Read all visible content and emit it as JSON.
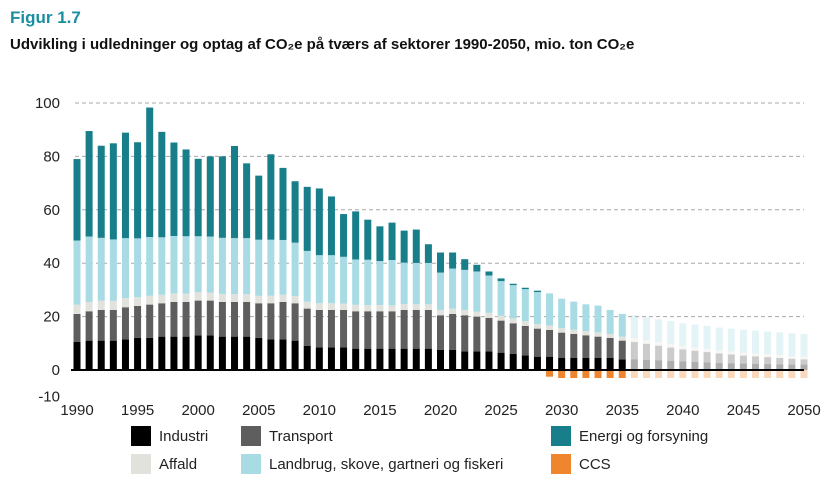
{
  "figure_label": "Figur 1.7",
  "title": "Udvikling i udledninger og optag af CO₂e på tværs af sektorer 1990-2050, mio. ton CO₂e",
  "chart_data": {
    "type": "bar",
    "stacked": true,
    "title": "Udvikling i udledninger og optag af CO₂e på tværs af sektorer 1990-2050, mio. ton CO₂e",
    "xlabel": "",
    "ylabel": "",
    "ylim": [
      -10,
      100
    ],
    "yticks": [
      -10,
      0,
      20,
      40,
      60,
      80,
      100
    ],
    "xticks": [
      1990,
      1995,
      2000,
      2005,
      2010,
      2015,
      2020,
      2025,
      2030,
      2035,
      2040,
      2045,
      2050
    ],
    "grid": "horizontal dashed",
    "legend_position": "bottom",
    "projection_starts": 2036,
    "categories": [
      1990,
      1991,
      1992,
      1993,
      1994,
      1995,
      1996,
      1997,
      1998,
      1999,
      2000,
      2001,
      2002,
      2003,
      2004,
      2005,
      2006,
      2007,
      2008,
      2009,
      2010,
      2011,
      2012,
      2013,
      2014,
      2015,
      2016,
      2017,
      2018,
      2019,
      2020,
      2021,
      2022,
      2023,
      2024,
      2025,
      2026,
      2027,
      2028,
      2029,
      2030,
      2031,
      2032,
      2033,
      2034,
      2035,
      2036,
      2037,
      2038,
      2039,
      2040,
      2041,
      2042,
      2043,
      2044,
      2045,
      2046,
      2047,
      2048,
      2049,
      2050
    ],
    "series": [
      {
        "name": "Industri",
        "color": "#000000",
        "values": [
          10.5,
          11,
          11,
          11,
          11.5,
          12,
          12,
          12.5,
          12.5,
          12.5,
          13,
          13,
          12.5,
          12.5,
          12.5,
          12,
          11.5,
          11.5,
          11,
          9,
          8.5,
          8.5,
          8.5,
          8,
          8,
          8,
          8,
          8,
          8,
          8,
          7.5,
          7.5,
          7,
          7,
          7,
          6.5,
          6,
          5.5,
          5,
          5,
          4.5,
          4.5,
          4.5,
          4.5,
          4.5,
          4,
          4,
          3.8,
          3.6,
          3.4,
          3.2,
          3,
          2.8,
          2.6,
          2.5,
          2.4,
          2.3,
          2.2,
          2.1,
          2,
          2
        ]
      },
      {
        "name": "Transport",
        "color": "#5e5e5e",
        "values": [
          10.5,
          11,
          11.5,
          11.5,
          12,
          12,
          12.5,
          12.5,
          13,
          13,
          13,
          13,
          13,
          13,
          13,
          13,
          13.5,
          14,
          14,
          14,
          14,
          14,
          14,
          14,
          14,
          14,
          14,
          14.5,
          14.5,
          14.5,
          13,
          13.5,
          13.5,
          13,
          12.5,
          12,
          11.5,
          11,
          10.5,
          10,
          9.5,
          9,
          8.5,
          8,
          7.5,
          7,
          6.5,
          6,
          5.5,
          5,
          4.5,
          4.2,
          3.9,
          3.6,
          3.3,
          3,
          2.8,
          2.6,
          2.4,
          2.2,
          2
        ]
      },
      {
        "name": "Affald",
        "color": "#e2e2dc",
        "values": [
          3.5,
          3.5,
          3.5,
          3.4,
          3.4,
          3.3,
          3.3,
          3.2,
          3.2,
          3.1,
          3.1,
          3,
          3,
          2.9,
          2.9,
          2.8,
          2.8,
          2.7,
          2.7,
          2.6,
          2.5,
          2.5,
          2.4,
          2.4,
          2.3,
          2.3,
          2.2,
          2.2,
          2.1,
          2.1,
          2,
          2,
          2,
          1.9,
          1.9,
          1.8,
          1.8,
          1.8,
          1.7,
          1.7,
          1.7,
          1.6,
          1.6,
          1.6,
          1.5,
          1.5,
          1.5,
          1.4,
          1.4,
          1.4,
          1.3,
          1.3,
          1.3,
          1.2,
          1.2,
          1.2,
          1.1,
          1.1,
          1.1,
          1,
          1
        ]
      },
      {
        "name": "Landbrug, skove, gartneri og fiskeri",
        "color": "#a8dbe4",
        "values": [
          24,
          24.5,
          23.5,
          23,
          22.5,
          22,
          22,
          21.5,
          21.5,
          21.5,
          21,
          21,
          21,
          21,
          21,
          21,
          21,
          20.5,
          20,
          19,
          18,
          18,
          17.5,
          17,
          17,
          16.5,
          17,
          15.5,
          15.5,
          15.5,
          14,
          15,
          15,
          15,
          14,
          13,
          12.5,
          12,
          12,
          12,
          11,
          10.5,
          10,
          10,
          9,
          8.5,
          8.5,
          8.5,
          8.5,
          8.5,
          8.5,
          8.5,
          8.5,
          8.5,
          8.5,
          8.5,
          8.5,
          8.5,
          8.5,
          8.5,
          8.5
        ]
      },
      {
        "name": "Energi og forsyning",
        "color": "#177e8a",
        "values": [
          30.5,
          39.5,
          34.5,
          36,
          39.5,
          36,
          48.5,
          39.5,
          35,
          32.5,
          29,
          30,
          30.5,
          34.5,
          28,
          24,
          32,
          27,
          23,
          24,
          25,
          22,
          16,
          18,
          15,
          13,
          14,
          12,
          12.5,
          7,
          7.5,
          6,
          4,
          2.5,
          1.5,
          1,
          0.5,
          0.5,
          0.5,
          0,
          0,
          0,
          0,
          0,
          0,
          0,
          0,
          0,
          0,
          0,
          0,
          0,
          0,
          0,
          0,
          0,
          0,
          0,
          0,
          0,
          0
        ]
      },
      {
        "name": "CCS",
        "color": "#f08530",
        "values": [
          0,
          0,
          0,
          0,
          0,
          0,
          0,
          0,
          0,
          0,
          0,
          0,
          0,
          0,
          0,
          0,
          0,
          0,
          0,
          0,
          0,
          0,
          0,
          0,
          0,
          0,
          0,
          0,
          0,
          0,
          0,
          0,
          0,
          0,
          0,
          0,
          0,
          0,
          0,
          -2.5,
          -3,
          -3,
          -3,
          -3,
          -3,
          -3,
          -3,
          -3,
          -3,
          -3,
          -3,
          -3,
          -3,
          -3,
          -3,
          -3,
          -3,
          -3,
          -3,
          -3,
          -3
        ]
      }
    ]
  }
}
